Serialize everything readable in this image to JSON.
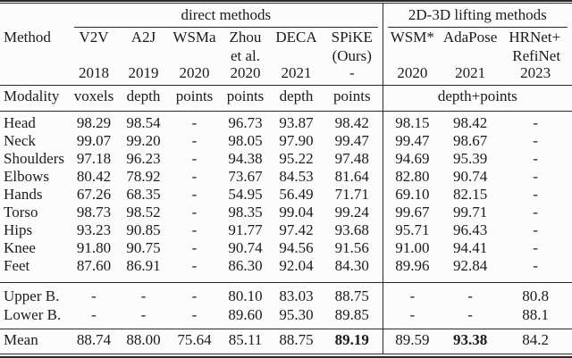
{
  "page": {
    "background": "#fcfcfc",
    "text_color": "#1b1b1b",
    "rule_color": "#2a2a2a"
  },
  "table": {
    "group_headers": [
      "direct methods",
      "2D-3D lifting methods"
    ],
    "columns": [
      {
        "line1": "Method",
        "line2": "",
        "year": ""
      },
      {
        "line1": "V2V",
        "line2": "",
        "year": "2018"
      },
      {
        "line1": "A2J",
        "line2": "",
        "year": "2019"
      },
      {
        "line1": "WSMa",
        "line2": "",
        "year": "2020"
      },
      {
        "line1": "Zhou",
        "line2": "et al.",
        "year": "2020"
      },
      {
        "line1": "DECA",
        "line2": "",
        "year": "2021"
      },
      {
        "line1": "SPiKE",
        "line2": "(Ours)",
        "year": "-"
      },
      {
        "line1": "WSM*",
        "line2": "",
        "year": "2020"
      },
      {
        "line1": "AdaPose",
        "line2": "",
        "year": "2021"
      },
      {
        "line1": "HRNet+",
        "line2": "RefiNet",
        "year": "2023"
      }
    ],
    "modality": {
      "label": "Modality",
      "values": [
        "voxels",
        "depth",
        "points",
        "points",
        "depth",
        "points"
      ],
      "lifting": "depth+points"
    },
    "body_rows": [
      {
        "label": "Head",
        "values": [
          "98.29",
          "98.54",
          "-",
          "96.73",
          "93.87",
          "98.42",
          "98.15",
          "98.42",
          "-"
        ]
      },
      {
        "label": "Neck",
        "values": [
          "99.07",
          "99.20",
          "-",
          "98.05",
          "97.90",
          "99.47",
          "99.47",
          "98.67",
          "-"
        ]
      },
      {
        "label": "Shoulders",
        "values": [
          "97.18",
          "96.23",
          "-",
          "94.38",
          "95.22",
          "97.48",
          "94.69",
          "95.39",
          "-"
        ]
      },
      {
        "label": "Elbows",
        "values": [
          "80.42",
          "78.92",
          "-",
          "73.67",
          "84.53",
          "81.64",
          "82.80",
          "90.74",
          "-"
        ]
      },
      {
        "label": "Hands",
        "values": [
          "67.26",
          "68.35",
          "-",
          "54.95",
          "56.49",
          "71.71",
          "69.10",
          "82.15",
          "-"
        ]
      },
      {
        "label": "Torso",
        "values": [
          "98.73",
          "98.52",
          "-",
          "98.35",
          "99.04",
          "99.24",
          "99.67",
          "99.71",
          "-"
        ]
      },
      {
        "label": "Hips",
        "values": [
          "93.23",
          "90.85",
          "-",
          "91.77",
          "97.42",
          "93.68",
          "95.71",
          "96.43",
          "-"
        ]
      },
      {
        "label": "Knee",
        "values": [
          "91.80",
          "90.75",
          "-",
          "90.74",
          "94.56",
          "91.56",
          "91.00",
          "94.41",
          "-"
        ]
      },
      {
        "label": "Feet",
        "values": [
          "87.60",
          "86.91",
          "-",
          "86.30",
          "92.04",
          "84.30",
          "89.96",
          "92.84",
          "-"
        ]
      }
    ],
    "summary_rows": [
      {
        "label": "Upper B.",
        "values": [
          "-",
          "-",
          "-",
          "80.10",
          "83.03",
          "88.75",
          "-",
          "-",
          "80.8"
        ]
      },
      {
        "label": "Lower B.",
        "values": [
          "-",
          "-",
          "-",
          "89.60",
          "95.30",
          "89.85",
          "-",
          "-",
          "88.1"
        ]
      }
    ],
    "mean_rows": [
      {
        "label": "Mean",
        "values": [
          "88.74",
          "88.00",
          "75.64",
          "85.11",
          "88.75",
          "89.19",
          "89.59",
          "93.38",
          "84.2"
        ],
        "bold_indices": [
          5,
          7
        ]
      }
    ]
  }
}
